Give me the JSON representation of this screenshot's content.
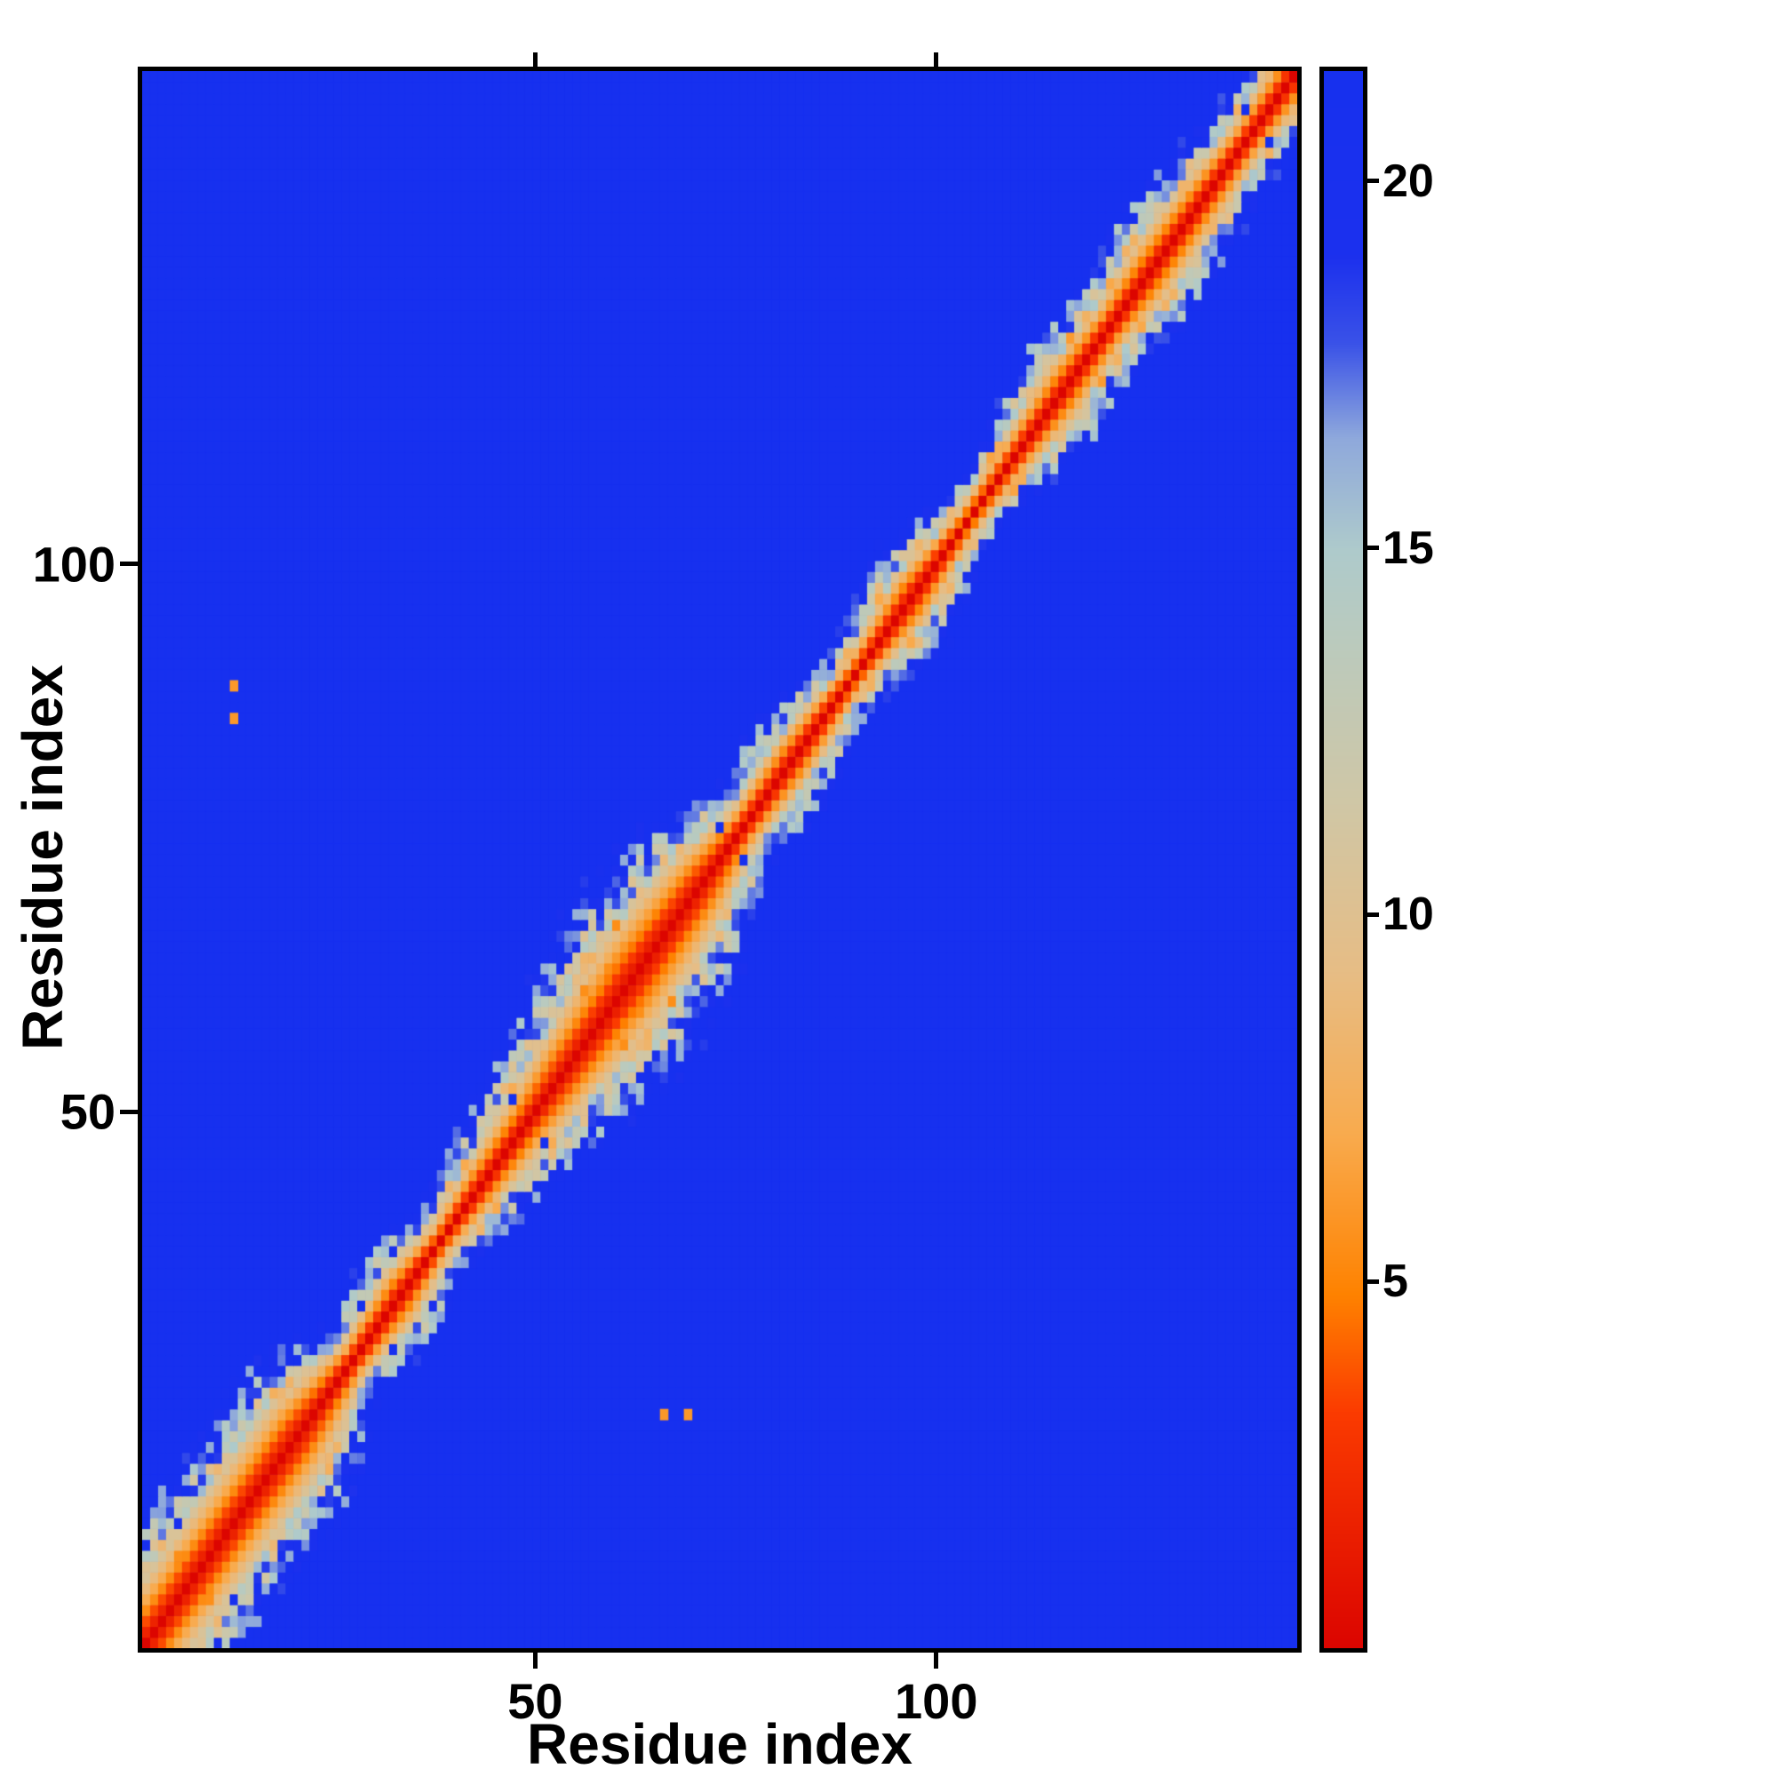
{
  "colors": {
    "background": "#ffffff",
    "axis": "#000000",
    "map_background_blue": "#1730ef"
  },
  "chart_data": {
    "type": "heatmap",
    "title": "",
    "xlabel": "Residue index",
    "ylabel": "Residue index",
    "x_ticks": [
      50,
      100
    ],
    "y_ticks": [
      50,
      100
    ],
    "axis_min": 1,
    "n_residues": 145,
    "grid": false,
    "colorbar": {
      "position": "right",
      "vmin": 0,
      "vmax": 21.5,
      "ticks": [
        5,
        10,
        15,
        20
      ],
      "colormap_stops": [
        [
          0.0,
          "#dc0500"
        ],
        [
          3.2,
          "#fb3b00"
        ],
        [
          4.8,
          "#ff8200"
        ],
        [
          7.0,
          "#f9ab4e"
        ],
        [
          9.2,
          "#e7bd85"
        ],
        [
          11.5,
          "#d0c7a6"
        ],
        [
          13.5,
          "#bdcabb"
        ],
        [
          15.0,
          "#aecacc"
        ],
        [
          16.5,
          "#8fa9dc"
        ],
        [
          17.8,
          "#3a52e8"
        ],
        [
          19.0,
          "#1c30ee"
        ],
        [
          21.5,
          "#1730ef"
        ]
      ]
    },
    "band_profile": [
      [
        1,
        12
      ],
      [
        20,
        12.5
      ],
      [
        27,
        6
      ],
      [
        33,
        8.5
      ],
      [
        38,
        5
      ],
      [
        43,
        7.5
      ],
      [
        48,
        9
      ],
      [
        55,
        12
      ],
      [
        62,
        14.5
      ],
      [
        70,
        12
      ],
      [
        76,
        6.5
      ],
      [
        82,
        8
      ],
      [
        90,
        5
      ],
      [
        97,
        8.5
      ],
      [
        104,
        4.5
      ],
      [
        110,
        6
      ],
      [
        116,
        8.5
      ],
      [
        122,
        7
      ],
      [
        127,
        9
      ],
      [
        133,
        8
      ],
      [
        139,
        6.5
      ],
      [
        145,
        8
      ]
    ],
    "outlier_cells": [
      {
        "col": 12,
        "row": 89,
        "value": 6
      },
      {
        "col": 12,
        "row": 86,
        "value": 6
      },
      {
        "col": 66,
        "row": 22,
        "value": 6
      },
      {
        "col": 69,
        "row": 22,
        "value": 6
      }
    ],
    "noise": {
      "seed": 42,
      "edge_band": [
        0.5,
        1.1
      ],
      "edge_amplitude": 5,
      "hole_prob": 0.012,
      "speckle_prob": 0.015,
      "speckle_value": 5.5
    }
  }
}
